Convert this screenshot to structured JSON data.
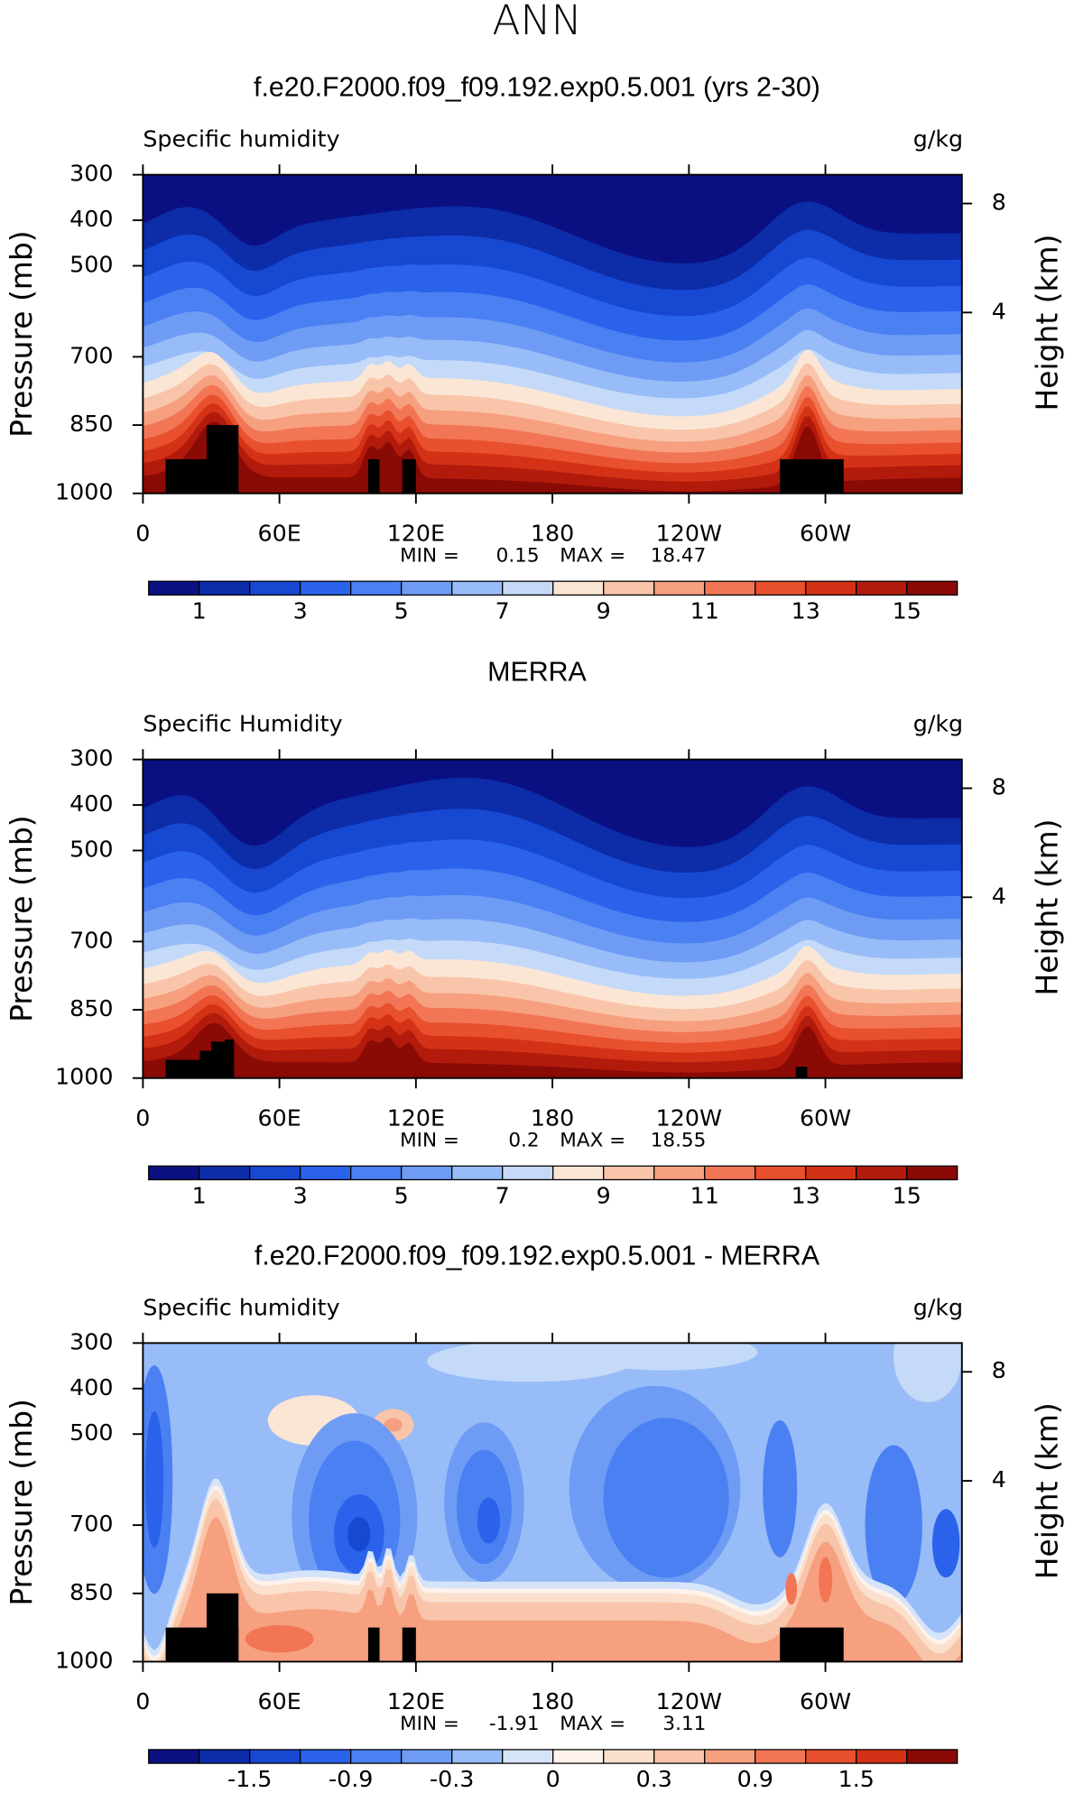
{
  "title": "ANN",
  "chart_data": [
    {
      "type": "contour",
      "title": "f.e20.F2000.f09_f09.192.exp0.5.001 (yrs 2-30)",
      "subtitle": "Specific humidity",
      "units": "g/kg",
      "ylabel": "Pressure (mb)",
      "y2label": "Height (km)",
      "xlim": [
        0,
        360
      ],
      "xticks": [
        0,
        {
          "value": 60,
          "label": "60E"
        },
        {
          "value": 120,
          "label": "120E"
        },
        180,
        {
          "value": 240,
          "label": "120W"
        },
        {
          "value": 300,
          "label": "60W"
        }
      ],
      "ylim": [
        1000,
        300
      ],
      "yticks": [
        300,
        400,
        500,
        700,
        850,
        1000
      ],
      "y2ticks": [
        8,
        4
      ],
      "min_label": "MIN =",
      "min": 0.15,
      "max_label": "MAX =",
      "max": 18.47,
      "colorbar": {
        "levels": [
          1,
          2,
          3,
          4,
          5,
          6,
          7,
          8,
          9,
          10,
          11,
          12,
          13,
          14,
          15
        ],
        "ticks": [
          1,
          3,
          5,
          7,
          9,
          11,
          13,
          15
        ],
        "colors": [
          "#0a0f82",
          "#0c2ca8",
          "#1748d1",
          "#2a62eb",
          "#4a80f2",
          "#6e9cf5",
          "#98bcf7",
          "#c4daf8",
          "#fbe6d5",
          "#f9c5aa",
          "#f6a080",
          "#f27655",
          "#e8502e",
          "#d43216",
          "#b21b0c",
          "#8a0a06"
        ]
      }
    },
    {
      "type": "contour",
      "title": "MERRA",
      "subtitle": "Specific Humidity",
      "units": "g/kg",
      "ylabel": "Pressure (mb)",
      "y2label": "Height (km)",
      "xlim": [
        0,
        360
      ],
      "xticks": [
        0,
        {
          "value": 60,
          "label": "60E"
        },
        {
          "value": 120,
          "label": "120E"
        },
        180,
        {
          "value": 240,
          "label": "120W"
        },
        {
          "value": 300,
          "label": "60W"
        }
      ],
      "ylim": [
        1000,
        300
      ],
      "yticks": [
        300,
        400,
        500,
        700,
        850,
        1000
      ],
      "y2ticks": [
        8,
        4
      ],
      "min_label": "MIN =",
      "min": 0.2,
      "max_label": "MAX =",
      "max": 18.55,
      "colorbar": {
        "levels": [
          1,
          2,
          3,
          4,
          5,
          6,
          7,
          8,
          9,
          10,
          11,
          12,
          13,
          14,
          15
        ],
        "ticks": [
          1,
          3,
          5,
          7,
          9,
          11,
          13,
          15
        ],
        "colors": [
          "#0a0f82",
          "#0c2ca8",
          "#1748d1",
          "#2a62eb",
          "#4a80f2",
          "#6e9cf5",
          "#98bcf7",
          "#c4daf8",
          "#fbe6d5",
          "#f9c5aa",
          "#f6a080",
          "#f27655",
          "#e8502e",
          "#d43216",
          "#b21b0c",
          "#8a0a06"
        ]
      }
    },
    {
      "type": "contour-diff",
      "title": "f.e20.F2000.f09_f09.192.exp0.5.001 - MERRA",
      "subtitle": "Specific humidity",
      "units": "g/kg",
      "ylabel": "Pressure (mb)",
      "y2label": "Height (km)",
      "xlim": [
        0,
        360
      ],
      "xticks": [
        0,
        {
          "value": 60,
          "label": "60E"
        },
        {
          "value": 120,
          "label": "120E"
        },
        180,
        {
          "value": 240,
          "label": "120W"
        },
        {
          "value": 300,
          "label": "60W"
        }
      ],
      "ylim": [
        1000,
        300
      ],
      "yticks": [
        300,
        400,
        500,
        700,
        850,
        1000
      ],
      "y2ticks": [
        8,
        4
      ],
      "min_label": "MIN =",
      "min": -1.91,
      "max_label": "MAX =",
      "max": 3.11,
      "colorbar": {
        "levels": [
          -1.8,
          -1.5,
          -1.2,
          -0.9,
          -0.6,
          -0.3,
          -0.1,
          0,
          0.1,
          0.3,
          0.6,
          0.9,
          1.2,
          1.5,
          1.8
        ],
        "ticks": [
          -1.5,
          -0.9,
          -0.3,
          0,
          0.3,
          0.9,
          1.5
        ],
        "colors": [
          "#0a0f82",
          "#0c2ca8",
          "#1748d1",
          "#2a62eb",
          "#4a80f2",
          "#6e9cf5",
          "#98bcf7",
          "#d6e4fa",
          "#fdf3ec",
          "#fbe0cd",
          "#f9c5aa",
          "#f6a080",
          "#f27655",
          "#e8502e",
          "#d43216",
          "#8a0a06"
        ]
      }
    }
  ]
}
